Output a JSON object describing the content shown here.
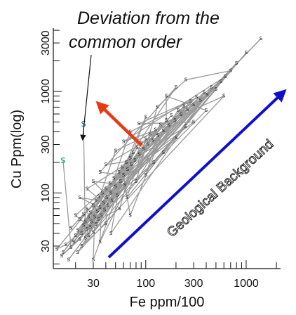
{
  "chart_data": {
    "type": "scatter",
    "title": "",
    "xlabel": "Fe ppm/100",
    "ylabel": "Cu Ppm(log)",
    "x_scale": "log",
    "y_scale": "log",
    "xlim": [
      12,
      2200
    ],
    "ylim": [
      18,
      4200
    ],
    "x_ticks": [
      30,
      100,
      300,
      1000
    ],
    "y_ticks": [
      30,
      100,
      300,
      1000,
      3000
    ],
    "grid": false,
    "point_marker": "s",
    "annotations": [
      {
        "text": "Deviation from the",
        "line": 1
      },
      {
        "text": "common order",
        "line": 2
      },
      {
        "text": "Geological Background"
      }
    ],
    "outlier_marker": "s",
    "outlier_color": "#1a8a8a",
    "trend_arrow_color": "#1010cc",
    "deviation_arrow_color": "#e63a12",
    "outliers": [
      {
        "x": 15,
        "y": 210
      },
      {
        "x": 24,
        "y": 480
      }
    ],
    "series": [
      {
        "values": [
          {
            "x": 13,
            "y": 28
          },
          {
            "x": 14.5,
            "y": 24
          },
          {
            "x": 15,
            "y": 26
          },
          {
            "x": 16,
            "y": 31
          },
          {
            "x": 17,
            "y": 22
          },
          {
            "x": 18,
            "y": 29
          },
          {
            "x": 19,
            "y": 33
          },
          {
            "x": 20,
            "y": 38
          },
          {
            "x": 21,
            "y": 26
          },
          {
            "x": 21,
            "y": 43
          },
          {
            "x": 22,
            "y": 35
          },
          {
            "x": 22,
            "y": 55
          },
          {
            "x": 23,
            "y": 40
          },
          {
            "x": 23,
            "y": 30
          },
          {
            "x": 24,
            "y": 48
          },
          {
            "x": 24,
            "y": 62
          },
          {
            "x": 25,
            "y": 36
          },
          {
            "x": 25,
            "y": 52
          },
          {
            "x": 26,
            "y": 44
          },
          {
            "x": 26,
            "y": 70
          },
          {
            "x": 27,
            "y": 58
          },
          {
            "x": 27,
            "y": 38
          },
          {
            "x": 28,
            "y": 46
          },
          {
            "x": 28,
            "y": 64
          },
          {
            "x": 29,
            "y": 52
          },
          {
            "x": 30,
            "y": 41
          },
          {
            "x": 30,
            "y": 75
          },
          {
            "x": 31,
            "y": 58
          },
          {
            "x": 32,
            "y": 49
          },
          {
            "x": 32,
            "y": 85
          },
          {
            "x": 33,
            "y": 66
          },
          {
            "x": 34,
            "y": 55
          },
          {
            "x": 34,
            "y": 92
          },
          {
            "x": 35,
            "y": 72
          },
          {
            "x": 36,
            "y": 60
          },
          {
            "x": 37,
            "y": 100
          },
          {
            "x": 38,
            "y": 80
          },
          {
            "x": 39,
            "y": 68
          },
          {
            "x": 40,
            "y": 110
          },
          {
            "x": 41,
            "y": 90
          },
          {
            "x": 42,
            "y": 75
          },
          {
            "x": 44,
            "y": 125
          },
          {
            "x": 45,
            "y": 100
          },
          {
            "x": 46,
            "y": 84
          },
          {
            "x": 48,
            "y": 140
          },
          {
            "x": 50,
            "y": 115
          },
          {
            "x": 52,
            "y": 95
          },
          {
            "x": 54,
            "y": 160
          },
          {
            "x": 56,
            "y": 130
          },
          {
            "x": 58,
            "y": 180
          },
          {
            "x": 60,
            "y": 150
          },
          {
            "x": 62,
            "y": 120
          },
          {
            "x": 64,
            "y": 200
          },
          {
            "x": 66,
            "y": 170
          },
          {
            "x": 70,
            "y": 220
          },
          {
            "x": 72,
            "y": 190
          },
          {
            "x": 75,
            "y": 250
          },
          {
            "x": 78,
            "y": 210
          },
          {
            "x": 82,
            "y": 280
          },
          {
            "x": 86,
            "y": 240
          },
          {
            "x": 90,
            "y": 310
          },
          {
            "x": 95,
            "y": 270
          },
          {
            "x": 100,
            "y": 340
          },
          {
            "x": 105,
            "y": 300
          },
          {
            "x": 110,
            "y": 380
          },
          {
            "x": 118,
            "y": 330
          },
          {
            "x": 125,
            "y": 420
          },
          {
            "x": 132,
            "y": 370
          },
          {
            "x": 140,
            "y": 470
          },
          {
            "x": 150,
            "y": 410
          },
          {
            "x": 160,
            "y": 520
          },
          {
            "x": 170,
            "y": 460
          },
          {
            "x": 180,
            "y": 580
          },
          {
            "x": 195,
            "y": 520
          },
          {
            "x": 210,
            "y": 650
          },
          {
            "x": 225,
            "y": 590
          },
          {
            "x": 240,
            "y": 720
          },
          {
            "x": 260,
            "y": 660
          },
          {
            "x": 280,
            "y": 800
          },
          {
            "x": 300,
            "y": 740
          },
          {
            "x": 320,
            "y": 880
          },
          {
            "x": 350,
            "y": 820
          },
          {
            "x": 380,
            "y": 980
          },
          {
            "x": 410,
            "y": 920
          },
          {
            "x": 450,
            "y": 1100
          },
          {
            "x": 500,
            "y": 1050
          },
          {
            "x": 560,
            "y": 1250
          },
          {
            "x": 620,
            "y": 1400
          },
          {
            "x": 700,
            "y": 1600
          },
          {
            "x": 800,
            "y": 1900
          },
          {
            "x": 1000,
            "y": 2400
          },
          {
            "x": 1400,
            "y": 3300
          },
          {
            "x": 30,
            "y": 22
          },
          {
            "x": 35,
            "y": 33
          },
          {
            "x": 40,
            "y": 50
          },
          {
            "x": 45,
            "y": 40
          },
          {
            "x": 55,
            "y": 70
          },
          {
            "x": 65,
            "y": 90
          },
          {
            "x": 70,
            "y": 60
          },
          {
            "x": 80,
            "y": 130
          },
          {
            "x": 100,
            "y": 150
          },
          {
            "x": 120,
            "y": 200
          },
          {
            "x": 150,
            "y": 250
          },
          {
            "x": 200,
            "y": 350
          },
          {
            "x": 250,
            "y": 450
          },
          {
            "x": 300,
            "y": 500
          },
          {
            "x": 400,
            "y": 650
          },
          {
            "x": 600,
            "y": 900
          },
          {
            "x": 18,
            "y": 45
          },
          {
            "x": 20,
            "y": 60
          },
          {
            "x": 22,
            "y": 90
          },
          {
            "x": 26,
            "y": 110
          },
          {
            "x": 30,
            "y": 130
          },
          {
            "x": 35,
            "y": 160
          },
          {
            "x": 40,
            "y": 190
          },
          {
            "x": 50,
            "y": 260
          },
          {
            "x": 60,
            "y": 320
          },
          {
            "x": 70,
            "y": 400
          },
          {
            "x": 85,
            "y": 480
          },
          {
            "x": 100,
            "y": 560
          },
          {
            "x": 130,
            "y": 700
          },
          {
            "x": 160,
            "y": 900
          },
          {
            "x": 200,
            "y": 1100
          },
          {
            "x": 250,
            "y": 1300
          }
        ]
      }
    ]
  }
}
